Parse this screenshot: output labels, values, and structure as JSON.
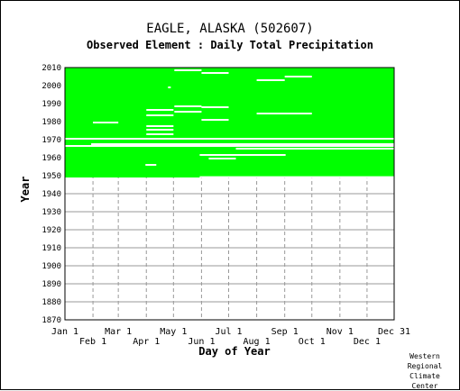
{
  "title": "EAGLE, ALASKA   (502607)",
  "subtitle": "Observed Element : Daily Total Precipitation",
  "credit": [
    "Western",
    "Regional",
    "Climate",
    "Center"
  ],
  "colors": {
    "data": "#00ff00",
    "grid": "#999999",
    "axis": "#000000"
  },
  "chart_data": {
    "type": "heatmap",
    "title": "EAGLE, ALASKA   (502607)",
    "subtitle": "Observed Element : Daily Total Precipitation",
    "xlabel": "Day of Year",
    "ylabel": "Year",
    "xlim": [
      1,
      365
    ],
    "ylim": [
      1870,
      2010
    ],
    "grid": true,
    "x_ticks_upper": [
      {
        "label": "Jan 1",
        "day": 1
      },
      {
        "label": "Mar 1",
        "day": 60
      },
      {
        "label": "May 1",
        "day": 121
      },
      {
        "label": "Jul 1",
        "day": 182
      },
      {
        "label": "Sep 1",
        "day": 244
      },
      {
        "label": "Nov 1",
        "day": 305
      },
      {
        "label": "Dec 31",
        "day": 365
      }
    ],
    "x_ticks_lower": [
      {
        "label": "Feb 1",
        "day": 32
      },
      {
        "label": "Apr 1",
        "day": 91
      },
      {
        "label": "Jun 1",
        "day": 152
      },
      {
        "label": "Aug 1",
        "day": 213
      },
      {
        "label": "Oct 1",
        "day": 274
      },
      {
        "label": "Dec 1",
        "day": 335
      }
    ],
    "y_ticks": [
      1870,
      1880,
      1890,
      1900,
      1910,
      1920,
      1930,
      1940,
      1950,
      1960,
      1970,
      1980,
      1990,
      2000,
      2010
    ],
    "observed_periods": [
      {
        "start_year": 1949,
        "end_year": 2010,
        "start_day": 1,
        "end_day": 365,
        "status": "observed"
      }
    ],
    "missing_spans": [
      {
        "year": 1970.5,
        "start_day": 1,
        "end_day": 365
      },
      {
        "year": 1966.5,
        "start_day": 1,
        "end_day": 365
      },
      {
        "year": 1967.5,
        "start_day": 30,
        "end_day": 365
      },
      {
        "year": 1965,
        "start_day": 190,
        "end_day": 365
      },
      {
        "year": 1961.5,
        "start_day": 150,
        "end_day": 245
      },
      {
        "year": 1959.5,
        "start_day": 160,
        "end_day": 190
      },
      {
        "year": 1956,
        "start_day": 90,
        "end_day": 102
      },
      {
        "year": 1949.2,
        "start_day": 150,
        "end_day": 365
      },
      {
        "year": 2008.5,
        "start_day": 122,
        "end_day": 152
      },
      {
        "year": 2007,
        "start_day": 152,
        "end_day": 182
      },
      {
        "year": 2005,
        "start_day": 244,
        "end_day": 274
      },
      {
        "year": 2003,
        "start_day": 213,
        "end_day": 244
      },
      {
        "year": 1999,
        "start_day": 115,
        "end_day": 118
      },
      {
        "year": 1988.5,
        "start_day": 122,
        "end_day": 152
      },
      {
        "year": 1988,
        "start_day": 152,
        "end_day": 182
      },
      {
        "year": 1986.5,
        "start_day": 91,
        "end_day": 121
      },
      {
        "year": 1985.5,
        "start_day": 122,
        "end_day": 152
      },
      {
        "year": 1984.5,
        "start_day": 213,
        "end_day": 274
      },
      {
        "year": 1983.5,
        "start_day": 91,
        "end_day": 121
      },
      {
        "year": 1981,
        "start_day": 152,
        "end_day": 182
      },
      {
        "year": 1979.5,
        "start_day": 32,
        "end_day": 60
      },
      {
        "year": 1977.5,
        "start_day": 91,
        "end_day": 121
      },
      {
        "year": 1975.5,
        "start_day": 91,
        "end_day": 121
      },
      {
        "year": 1973,
        "start_day": 91,
        "end_day": 121
      }
    ]
  }
}
